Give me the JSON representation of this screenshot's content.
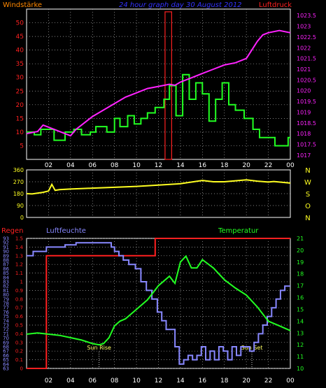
{
  "title": "24 hour graph day  30 August 2012",
  "colors": {
    "background": "#000000",
    "grid": "#b0b0b0",
    "wind": "#22ff22",
    "pressure": "#ff22ff",
    "direction": "#ffff22",
    "humidity": "#8888ff",
    "temperature": "#22ff22",
    "rain": "#ff2020",
    "title": "#3333ff",
    "red_label": "#ff2020",
    "orange_label": "#ff8800",
    "humidity_label": "#8888ff",
    "temp_label": "#22ff22",
    "direction_letters": "#ffff22",
    "sun_label": "#ffff66"
  },
  "x_ticks": [
    "02",
    "04",
    "06",
    "08",
    "10",
    "12",
    "14",
    "16",
    "18",
    "20",
    "22",
    "00"
  ],
  "chart_data": [
    {
      "type": "line",
      "panel": "top",
      "labels": {
        "left": "Windstärke",
        "right": "Luftdruck"
      },
      "left_axis": {
        "ticks": [
          5,
          10,
          15,
          20,
          25,
          30,
          35,
          40,
          45,
          50
        ],
        "ylim": [
          0,
          55
        ]
      },
      "right_axis": {
        "ticks": [
          "1017",
          "1017.5",
          "1018",
          "1018.5",
          "1019",
          "1019.5",
          "1020",
          "1020.5",
          "1021",
          "1021.5",
          "1022",
          "1022.5",
          "1023",
          "1023.5"
        ],
        "ylim": [
          1016.8,
          1023.8
        ]
      },
      "xlim": [
        0,
        24
      ],
      "series": [
        {
          "key": "wind",
          "step": true,
          "x": [
            0,
            0.7,
            1.3,
            2.5,
            3.5,
            4.3,
            5.0,
            5.8,
            6.3,
            7.3,
            8.0,
            8.5,
            9.2,
            9.8,
            10.4,
            11.0,
            11.7,
            12.5,
            13.0,
            13.6,
            14.2,
            14.8,
            15.4,
            16.0,
            16.6,
            17.2,
            17.8,
            18.4,
            19.0,
            19.8,
            20.6,
            21.2,
            22.0,
            22.6,
            23.2,
            23.8,
            24
          ],
          "y": [
            10,
            9,
            11,
            7,
            10,
            11,
            9,
            10,
            12,
            10,
            15,
            12,
            16,
            13,
            15,
            17,
            19,
            22,
            27,
            16,
            31,
            22,
            28,
            24,
            14,
            22,
            28,
            20,
            18,
            15,
            11,
            8,
            8,
            5,
            5,
            8,
            8
          ]
        },
        {
          "key": "pressure",
          "step": false,
          "x": [
            0,
            1,
            1.5,
            2,
            3,
            4,
            4.5,
            5,
            6,
            7,
            8,
            9,
            10,
            11,
            12,
            13,
            13.5,
            14,
            15,
            16,
            17,
            18,
            19,
            20,
            20.5,
            21,
            21.5,
            22,
            23,
            24
          ],
          "y": [
            1018.0,
            1018.1,
            1018.4,
            1018.3,
            1018.1,
            1017.9,
            1018.2,
            1018.4,
            1018.8,
            1019.1,
            1019.4,
            1019.7,
            1019.9,
            1020.1,
            1020.2,
            1020.3,
            1020.25,
            1020.4,
            1020.6,
            1020.8,
            1021.0,
            1021.2,
            1021.3,
            1021.5,
            1021.9,
            1022.3,
            1022.6,
            1022.7,
            1022.8,
            1022.7
          ]
        }
      ],
      "anomaly_bar": {
        "x_start": 12.6,
        "x_end": 13.2,
        "value": 54
      }
    },
    {
      "type": "line",
      "panel": "middle",
      "left_axis": {
        "ticks": [
          0,
          90,
          180,
          270,
          360
        ],
        "ylim": [
          0,
          360
        ]
      },
      "right_letters": [
        "N",
        "W",
        "S",
        "O",
        "N"
      ],
      "xlim": [
        0,
        24
      ],
      "series": [
        {
          "key": "direction",
          "step": false,
          "x": [
            0,
            0.5,
            1,
            1.5,
            2,
            2.3,
            2.6,
            3,
            4,
            6,
            8,
            10,
            12,
            14,
            16,
            17,
            18,
            20,
            21,
            22,
            22.5,
            24
          ],
          "y": [
            180,
            178,
            184,
            190,
            200,
            250,
            205,
            210,
            215,
            222,
            228,
            235,
            245,
            255,
            280,
            270,
            270,
            285,
            275,
            268,
            272,
            260
          ]
        }
      ]
    },
    {
      "type": "line",
      "panel": "bottom",
      "labels": {
        "left_top": "Regen",
        "humidity": "Luftfeuchte",
        "temperature": "Temperatur",
        "sunrise": "Sun Rise",
        "sunset": "Sun Set"
      },
      "humidity_axis": {
        "ticks": [
          63,
          64,
          65,
          66,
          67,
          68,
          69,
          70,
          71,
          72,
          73,
          74,
          75,
          76,
          77,
          78,
          79,
          80,
          81,
          82,
          83,
          84,
          85,
          86,
          87,
          88,
          89,
          90,
          91,
          92,
          93
        ],
        "ylim": [
          63,
          93
        ]
      },
      "rain_axis": {
        "ticks": [
          "0",
          "0.1",
          "0.2",
          "0.3",
          "0.4",
          "0.5",
          "0.6",
          "0.7",
          "0.8",
          "0.9",
          "1",
          "1.1",
          "1.2",
          "1.3",
          "1.4",
          "1.5"
        ],
        "ylim": [
          0,
          1.5
        ]
      },
      "temperature_axis": {
        "ticks": [
          10,
          11,
          12,
          13,
          14,
          15,
          16,
          17,
          18,
          19,
          20,
          21
        ],
        "ylim": [
          10,
          21
        ]
      },
      "sun": {
        "rise": 6.6,
        "set": 20.5
      },
      "xlim": [
        0,
        24
      ],
      "series": [
        {
          "key": "rain",
          "step": true,
          "x": [
            0,
            1.8,
            11.7,
            24
          ],
          "y": [
            0,
            1.3,
            1.5,
            1.5
          ]
        },
        {
          "key": "humidity",
          "step": true,
          "x": [
            0,
            0.6,
            1.2,
            1.8,
            2.4,
            3.5,
            4.5,
            5.3,
            6.0,
            7.0,
            7.7,
            8.0,
            8.4,
            8.8,
            9.3,
            9.9,
            10.4,
            10.9,
            11.4,
            11.9,
            12.3,
            12.7,
            13.1,
            13.5,
            13.9,
            14.3,
            14.7,
            15.1,
            15.5,
            15.9,
            16.3,
            16.7,
            17.1,
            17.5,
            17.9,
            18.3,
            18.7,
            19.1,
            19.5,
            19.9,
            20.3,
            20.7,
            21.1,
            21.5,
            21.9,
            22.3,
            22.7,
            23.1,
            23.5,
            24
          ],
          "y": [
            89,
            90,
            90,
            91,
            91,
            91.5,
            92,
            92,
            92,
            92,
            91,
            90,
            89,
            88,
            87,
            86,
            83,
            81,
            79,
            76,
            74,
            72,
            72,
            68,
            64,
            65,
            66,
            65,
            66,
            68,
            65,
            67,
            65,
            68,
            67,
            65,
            68,
            66,
            68,
            68,
            67,
            69,
            71,
            73,
            75,
            77,
            79,
            81,
            82,
            82
          ]
        },
        {
          "key": "temperature",
          "step": false,
          "x": [
            0,
            1,
            2,
            3,
            4,
            5,
            6,
            6.6,
            7,
            7.5,
            8,
            8.5,
            9,
            10,
            11,
            12,
            13,
            13.5,
            14,
            14.5,
            15,
            15.5,
            16,
            17,
            18,
            19,
            20,
            21,
            22,
            23,
            24
          ],
          "y": [
            12.9,
            13.0,
            12.9,
            12.8,
            12.6,
            12.4,
            12.1,
            12.0,
            12.1,
            12.6,
            13.6,
            14.0,
            14.2,
            15.0,
            15.8,
            17.0,
            17.8,
            17.2,
            19.0,
            19.5,
            18.5,
            18.5,
            19.2,
            18.5,
            17.5,
            16.8,
            16.2,
            15.2,
            14.0,
            13.6,
            13.2
          ]
        }
      ]
    }
  ]
}
